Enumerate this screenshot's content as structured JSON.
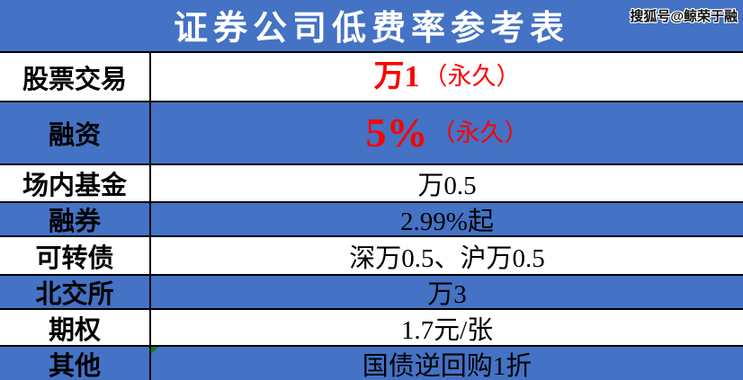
{
  "title": "证券公司低费率参考表",
  "watermark": "搜狐号@鲸荣于融",
  "colors": {
    "header_blue": "#4472C4",
    "row_alt_blue": "#4472C4",
    "highlight_red": "#FF0000",
    "border_black": "#000000",
    "indicator_green": "#107C10",
    "title_text": "#FFFFFF"
  },
  "table": {
    "rows": [
      {
        "label": "股票交易",
        "value": "万1",
        "suffix": "（永久）",
        "highlighted": true
      },
      {
        "label": "融资",
        "value": "5%",
        "suffix": "（永久）",
        "highlighted": true
      },
      {
        "label": "场内基金",
        "value": "万0.5",
        "highlighted": false
      },
      {
        "label": "融券",
        "value": "2.99%起",
        "highlighted": false
      },
      {
        "label": "可转债",
        "value": "深万0.5、沪万0.5",
        "highlighted": false
      },
      {
        "label": "北交所",
        "value": "万3",
        "highlighted": false
      },
      {
        "label": "期权",
        "value": "1.7元/张",
        "highlighted": false
      },
      {
        "label": "其他",
        "value": "国债逆回购1折",
        "highlighted": false
      }
    ]
  }
}
